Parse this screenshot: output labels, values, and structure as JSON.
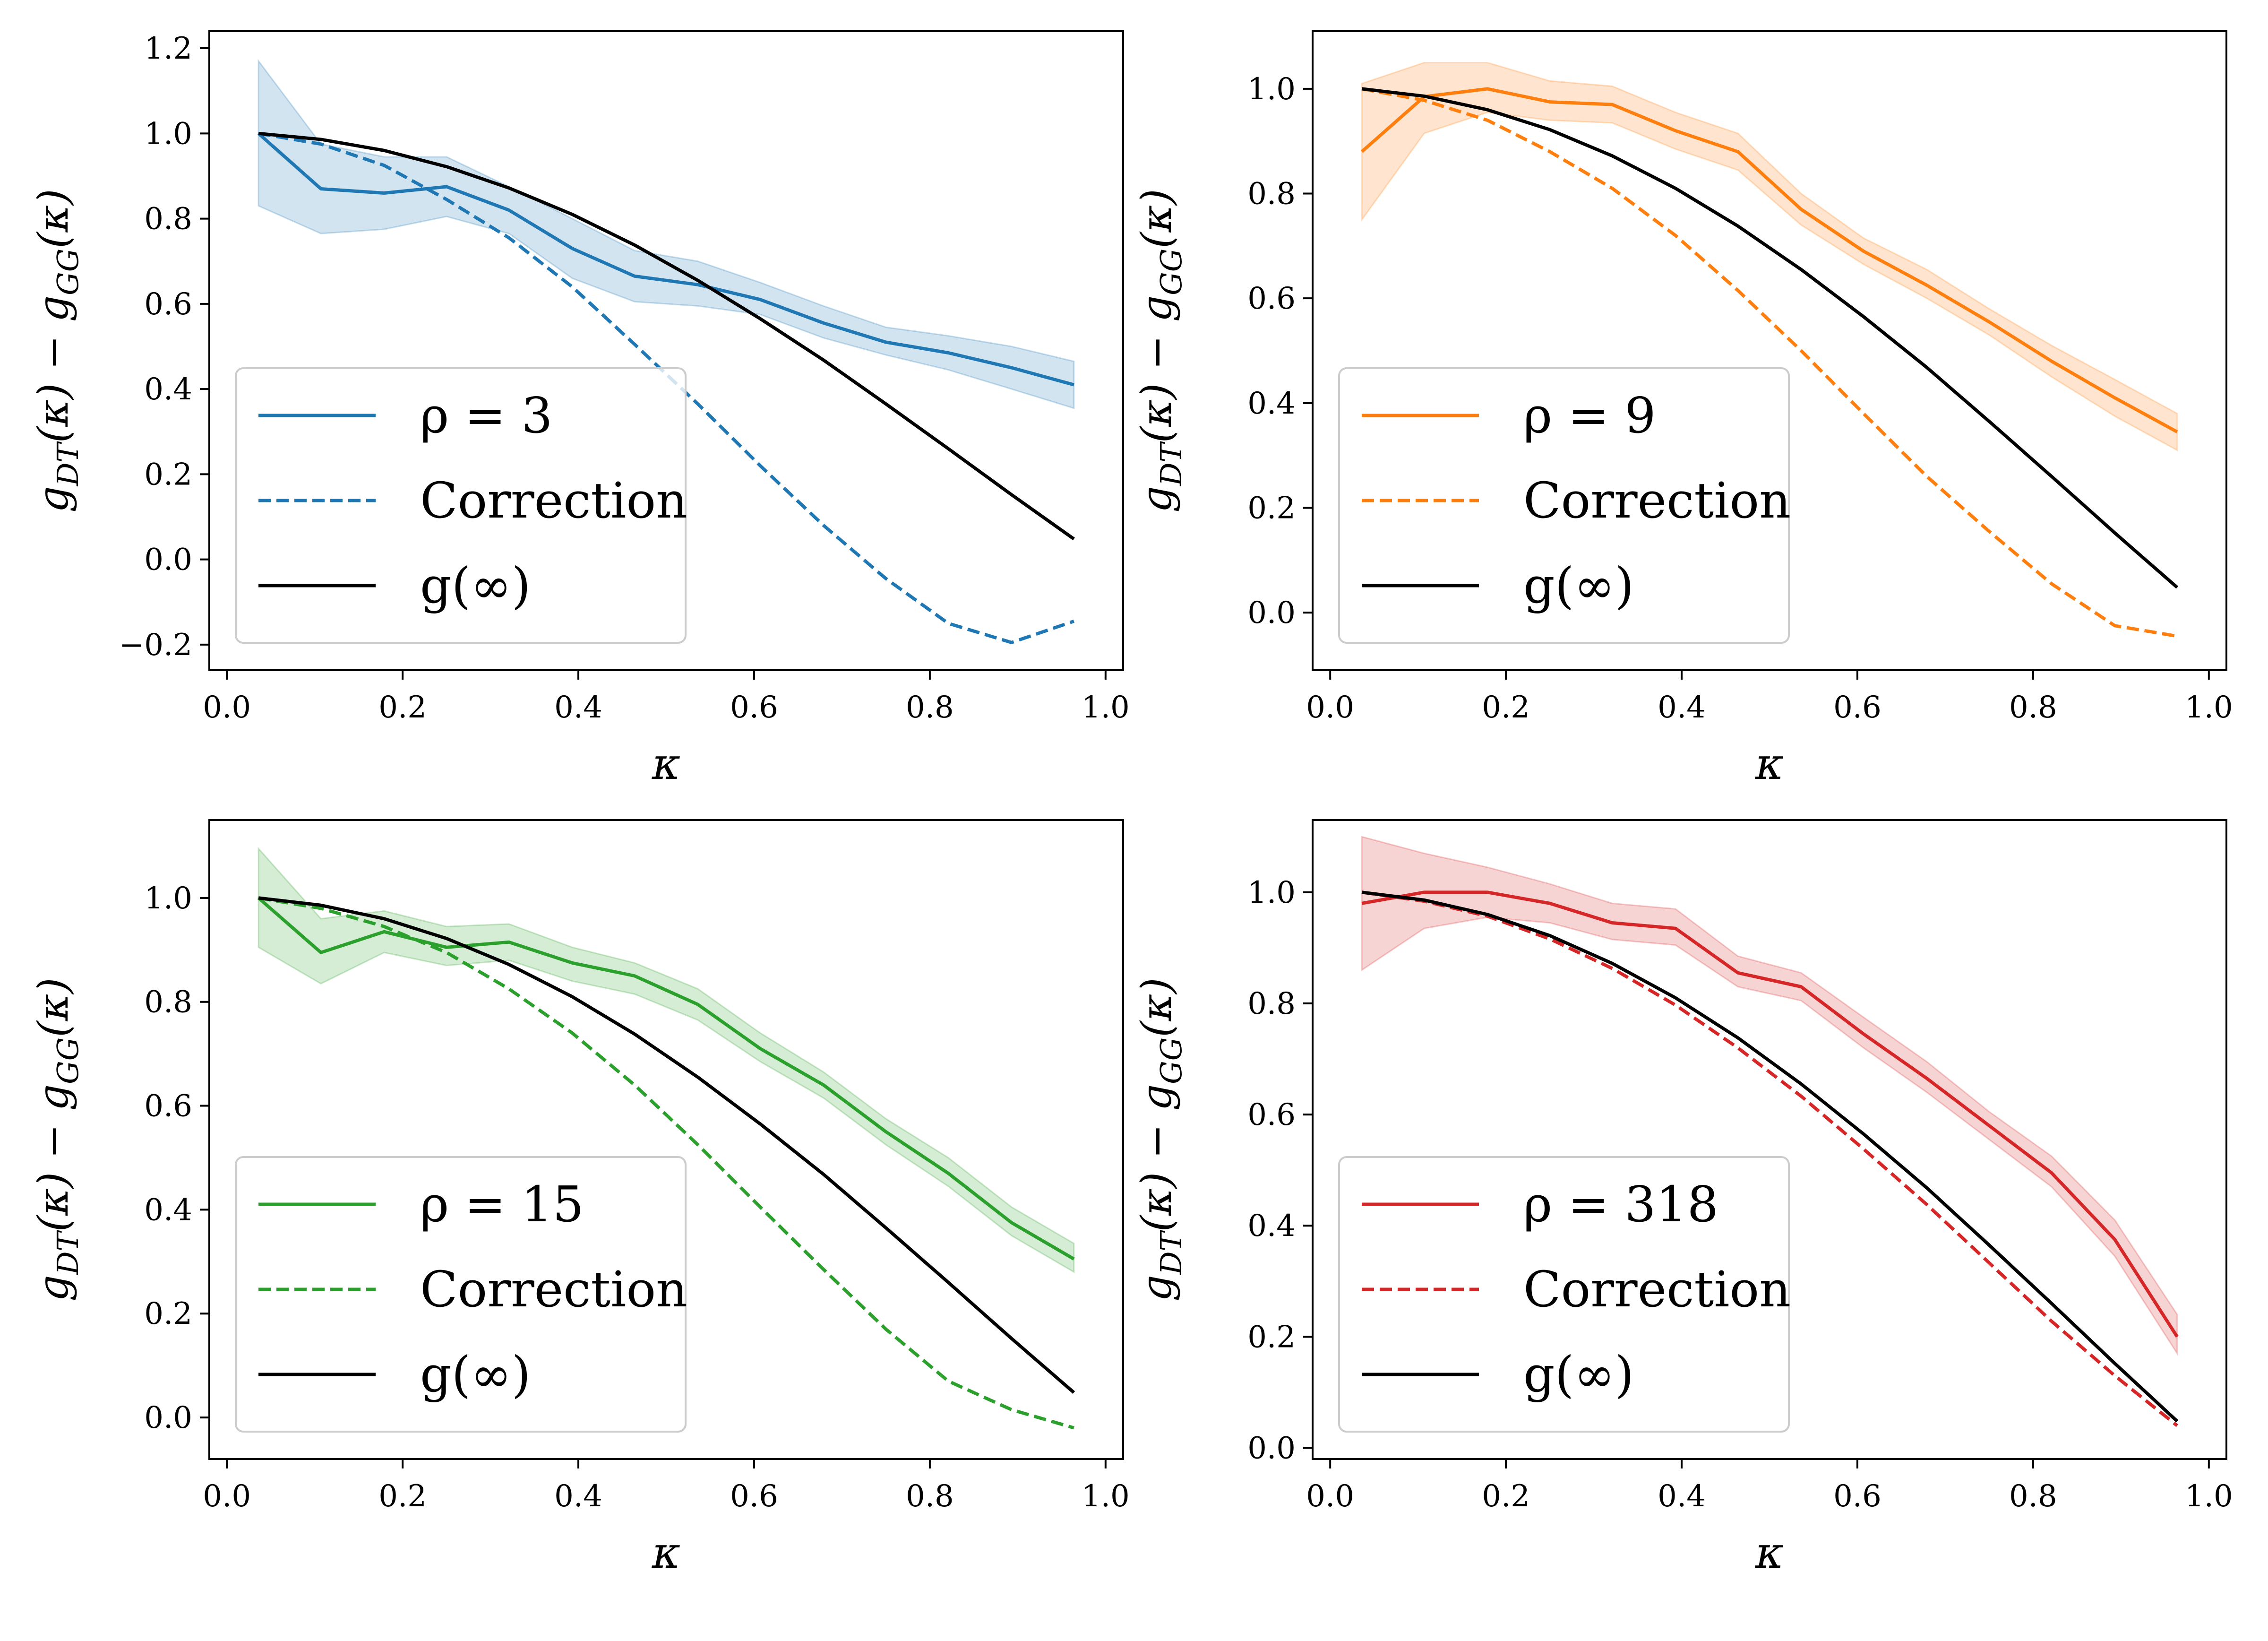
{
  "figure": {
    "ylabel": "g_DT(κ) − g_GG(κ)",
    "ylabel_parts": {
      "g": "g",
      "sub1": "DT",
      "arg": "(κ) − ",
      "sub2": "GG",
      "end": "(κ)"
    },
    "xlabel": "κ"
  },
  "chart_data": [
    {
      "type": "line",
      "panel": "top-left",
      "title": "",
      "xlabel": "κ",
      "ylabel": "g_DT(κ) − g_GG(κ)",
      "xlim": [
        -0.02,
        1.02
      ],
      "ylim": [
        -0.26,
        1.24
      ],
      "xticks": [
        0.0,
        0.2,
        0.4,
        0.6,
        0.8,
        1.0
      ],
      "xtick_labels": [
        "0.0",
        "0.2",
        "0.4",
        "0.6",
        "0.8",
        "1.0"
      ],
      "yticks": [
        -0.2,
        0.0,
        0.2,
        0.4,
        0.6,
        0.8,
        1.0,
        1.2
      ],
      "ytick_labels": [
        "−0.2",
        "0.0",
        "0.2",
        "0.4",
        "0.6",
        "0.8",
        "1.0",
        "1.2"
      ],
      "color": "#1f77b4",
      "x": [
        0.036,
        0.107,
        0.179,
        0.25,
        0.321,
        0.393,
        0.464,
        0.536,
        0.607,
        0.679,
        0.75,
        0.821,
        0.893,
        0.964
      ],
      "legend_location": "lower-left",
      "series": [
        {
          "name": "ρ = 3",
          "style": "solid",
          "values": [
            1.0,
            0.87,
            0.86,
            0.875,
            0.82,
            0.73,
            0.665,
            0.645,
            0.61,
            0.555,
            0.51,
            0.485,
            0.45,
            0.41
          ],
          "band_lower": [
            0.83,
            0.765,
            0.775,
            0.805,
            0.765,
            0.66,
            0.605,
            0.595,
            0.575,
            0.52,
            0.48,
            0.445,
            0.4,
            0.355
          ],
          "band_upper": [
            1.17,
            0.975,
            0.945,
            0.945,
            0.875,
            0.8,
            0.725,
            0.7,
            0.65,
            0.595,
            0.545,
            0.525,
            0.5,
            0.465
          ]
        },
        {
          "name": "Correction",
          "style": "dashed",
          "values": [
            1.0,
            0.975,
            0.925,
            0.845,
            0.755,
            0.64,
            0.505,
            0.365,
            0.22,
            0.08,
            -0.045,
            -0.15,
            -0.195,
            -0.145
          ]
        },
        {
          "name": "g(∞)",
          "style": "solid-black",
          "values": [
            1.0,
            0.986,
            0.96,
            0.922,
            0.872,
            0.81,
            0.738,
            0.655,
            0.565,
            0.468,
            0.365,
            0.26,
            0.152,
            0.048
          ]
        }
      ]
    },
    {
      "type": "line",
      "panel": "top-right",
      "title": "",
      "xlabel": "κ",
      "ylabel": "g_DT(κ) − g_GG(κ)",
      "xlim": [
        -0.02,
        1.02
      ],
      "ylim": [
        -0.11,
        1.11
      ],
      "xticks": [
        0.0,
        0.2,
        0.4,
        0.6,
        0.8,
        1.0
      ],
      "xtick_labels": [
        "0.0",
        "0.2",
        "0.4",
        "0.6",
        "0.8",
        "1.0"
      ],
      "yticks": [
        0.0,
        0.2,
        0.4,
        0.6,
        0.8,
        1.0
      ],
      "ytick_labels": [
        "0.0",
        "0.2",
        "0.4",
        "0.6",
        "0.8",
        "1.0"
      ],
      "color": "#ff7f0e",
      "x": [
        0.036,
        0.107,
        0.179,
        0.25,
        0.321,
        0.393,
        0.464,
        0.536,
        0.607,
        0.679,
        0.75,
        0.821,
        0.893,
        0.964
      ],
      "legend_location": "lower-left",
      "series": [
        {
          "name": "ρ = 9",
          "style": "solid",
          "values": [
            0.88,
            0.985,
            1.0,
            0.975,
            0.97,
            0.92,
            0.88,
            0.77,
            0.69,
            0.625,
            0.555,
            0.48,
            0.41,
            0.345
          ],
          "band_lower": [
            0.75,
            0.915,
            0.955,
            0.94,
            0.935,
            0.885,
            0.845,
            0.74,
            0.665,
            0.6,
            0.53,
            0.45,
            0.375,
            0.31
          ],
          "band_upper": [
            1.01,
            1.05,
            1.05,
            1.015,
            1.005,
            0.955,
            0.915,
            0.8,
            0.715,
            0.655,
            0.58,
            0.51,
            0.445,
            0.38
          ]
        },
        {
          "name": "Correction",
          "style": "dashed",
          "values": [
            1.0,
            0.978,
            0.94,
            0.88,
            0.81,
            0.72,
            0.615,
            0.5,
            0.38,
            0.26,
            0.155,
            0.055,
            -0.025,
            -0.045
          ]
        },
        {
          "name": "g(∞)",
          "style": "solid-black",
          "values": [
            1.0,
            0.986,
            0.96,
            0.922,
            0.872,
            0.81,
            0.738,
            0.655,
            0.565,
            0.468,
            0.365,
            0.26,
            0.152,
            0.048
          ]
        }
      ]
    },
    {
      "type": "line",
      "panel": "bottom-left",
      "title": "",
      "xlabel": "κ",
      "ylabel": "g_DT(κ) − g_GG(κ)",
      "xlim": [
        -0.02,
        1.02
      ],
      "ylim": [
        -0.08,
        1.15
      ],
      "xticks": [
        0.0,
        0.2,
        0.4,
        0.6,
        0.8,
        1.0
      ],
      "xtick_labels": [
        "0.0",
        "0.2",
        "0.4",
        "0.6",
        "0.8",
        "1.0"
      ],
      "yticks": [
        0.0,
        0.2,
        0.4,
        0.6,
        0.8,
        1.0
      ],
      "ytick_labels": [
        "0.0",
        "0.2",
        "0.4",
        "0.6",
        "0.8",
        "1.0"
      ],
      "color": "#2ca02c",
      "x": [
        0.036,
        0.107,
        0.179,
        0.25,
        0.321,
        0.393,
        0.464,
        0.536,
        0.607,
        0.679,
        0.75,
        0.821,
        0.893,
        0.964
      ],
      "legend_location": "lower-left",
      "series": [
        {
          "name": "ρ = 15",
          "style": "solid",
          "values": [
            1.0,
            0.895,
            0.935,
            0.905,
            0.915,
            0.875,
            0.85,
            0.795,
            0.71,
            0.64,
            0.55,
            0.47,
            0.375,
            0.305
          ],
          "band_lower": [
            0.905,
            0.835,
            0.895,
            0.87,
            0.88,
            0.84,
            0.815,
            0.765,
            0.685,
            0.615,
            0.525,
            0.445,
            0.35,
            0.28
          ],
          "band_upper": [
            1.095,
            0.96,
            0.975,
            0.945,
            0.95,
            0.905,
            0.875,
            0.825,
            0.74,
            0.665,
            0.575,
            0.5,
            0.405,
            0.335
          ]
        },
        {
          "name": "Correction",
          "style": "dashed",
          "values": [
            1.0,
            0.98,
            0.945,
            0.895,
            0.825,
            0.74,
            0.64,
            0.525,
            0.405,
            0.285,
            0.17,
            0.07,
            0.015,
            -0.02
          ]
        },
        {
          "name": "g(∞)",
          "style": "solid-black",
          "values": [
            1.0,
            0.986,
            0.96,
            0.922,
            0.872,
            0.81,
            0.738,
            0.655,
            0.565,
            0.468,
            0.365,
            0.26,
            0.152,
            0.048
          ]
        }
      ]
    },
    {
      "type": "line",
      "panel": "bottom-right",
      "title": "",
      "xlabel": "κ",
      "ylabel": "g_DT(κ) − g_GG(κ)",
      "xlim": [
        -0.02,
        1.02
      ],
      "ylim": [
        -0.02,
        1.13
      ],
      "xticks": [
        0.0,
        0.2,
        0.4,
        0.6,
        0.8,
        1.0
      ],
      "xtick_labels": [
        "0.0",
        "0.2",
        "0.4",
        "0.6",
        "0.8",
        "1.0"
      ],
      "yticks": [
        0.0,
        0.2,
        0.4,
        0.6,
        0.8,
        1.0
      ],
      "ytick_labels": [
        "0.0",
        "0.2",
        "0.4",
        "0.6",
        "0.8",
        "1.0"
      ],
      "color": "#d62728",
      "x": [
        0.036,
        0.107,
        0.179,
        0.25,
        0.321,
        0.393,
        0.464,
        0.536,
        0.607,
        0.679,
        0.75,
        0.821,
        0.893,
        0.964
      ],
      "legend_location": "lower-left",
      "series": [
        {
          "name": "ρ = 318",
          "style": "solid",
          "values": [
            0.98,
            1.0,
            1.0,
            0.98,
            0.945,
            0.935,
            0.855,
            0.83,
            0.745,
            0.665,
            0.58,
            0.495,
            0.375,
            0.2
          ],
          "band_lower": [
            0.86,
            0.935,
            0.955,
            0.945,
            0.915,
            0.905,
            0.83,
            0.805,
            0.72,
            0.64,
            0.555,
            0.47,
            0.345,
            0.17
          ],
          "band_upper": [
            1.1,
            1.07,
            1.045,
            1.015,
            0.98,
            0.97,
            0.885,
            0.855,
            0.775,
            0.695,
            0.605,
            0.525,
            0.41,
            0.24
          ]
        },
        {
          "name": "Correction",
          "style": "dashed",
          "values": [
            1.0,
            0.984,
            0.957,
            0.916,
            0.863,
            0.797,
            0.72,
            0.633,
            0.538,
            0.438,
            0.333,
            0.228,
            0.13,
            0.04
          ]
        },
        {
          "name": "g(∞)",
          "style": "solid-black",
          "values": [
            1.0,
            0.986,
            0.96,
            0.922,
            0.872,
            0.81,
            0.738,
            0.655,
            0.565,
            0.468,
            0.365,
            0.26,
            0.152,
            0.048
          ]
        }
      ]
    }
  ]
}
